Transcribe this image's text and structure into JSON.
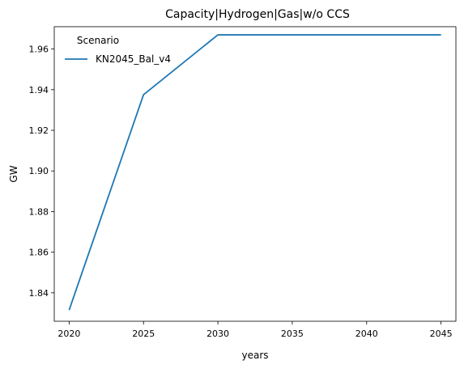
{
  "chart_data": {
    "type": "line",
    "title": "Capacity|Hydrogen|Gas|w/o CCS",
    "xlabel": "years",
    "ylabel": "GW",
    "x": [
      2020,
      2025,
      2030,
      2035,
      2040,
      2045
    ],
    "xlim": [
      2019,
      2046
    ],
    "ylim": [
      1.826,
      1.971
    ],
    "xticks": [
      2020,
      2025,
      2030,
      2035,
      2040,
      2045
    ],
    "yticks": [
      1.84,
      1.86,
      1.88,
      1.9,
      1.92,
      1.94,
      1.96
    ],
    "ytick_labels": [
      "1.84",
      "1.86",
      "1.88",
      "1.90",
      "1.92",
      "1.94",
      "1.96"
    ],
    "grid": false,
    "legend": {
      "title": "Scenario",
      "placement": "top-left"
    },
    "series": [
      {
        "name": "KN2045_Bal_v4",
        "color": "#1f77b4",
        "values": [
          1.8315,
          1.9375,
          1.967,
          1.967,
          1.967,
          1.967
        ]
      }
    ]
  }
}
